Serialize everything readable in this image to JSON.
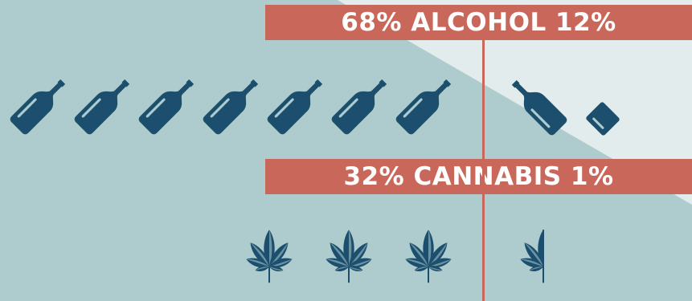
{
  "colors": {
    "background": "#aecccd",
    "background_light": "#e2ecec",
    "accent": "#c9675a",
    "icon_dark": "#1c4f6e",
    "icon_light": "#aecccd",
    "text": "#ffffff"
  },
  "alcohol": {
    "left_value": "68%",
    "label": "ALCOHOL",
    "right_value": "12%",
    "left_icon_count": 7,
    "right_icon_count": 2,
    "icon": "wine-bottle-icon"
  },
  "cannabis": {
    "left_value": "32%",
    "label": "CANNABIS",
    "right_value": "1%",
    "left_icon_count": 3,
    "right_icon_count": 0.5,
    "icon": "cannabis-leaf-icon"
  }
}
